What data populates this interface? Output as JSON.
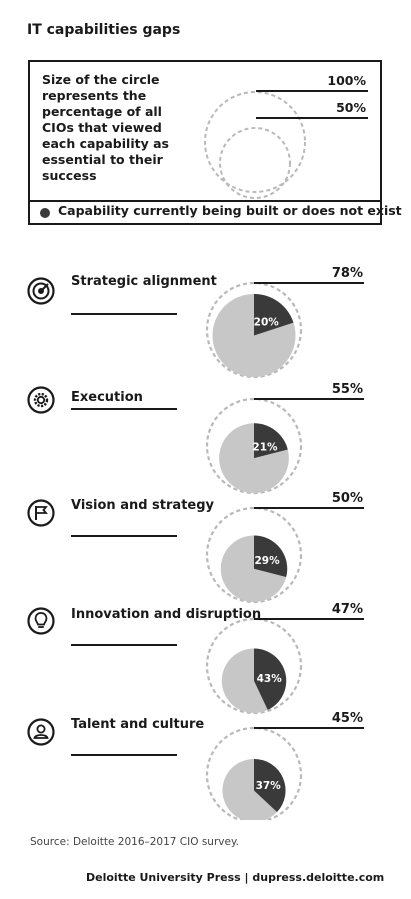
{
  "title": "IT capabilities gaps",
  "legend": {
    "description": "Size of the circle represents the percentage of all CIOs that viewed each capability as essential to their success",
    "scale_100": "100%",
    "scale_50": "50%",
    "dot_label": "Capability currently being built or does not exist",
    "colors": {
      "dot": "#3a3a3a",
      "pie_light": "#c7c7c7",
      "dashed": "#b9b9b9"
    }
  },
  "chart_data": {
    "type": "pie",
    "note_type": "bubble-pie (circle area = essential %, dark wedge = currently being built or does not exist)",
    "rows": [
      {
        "label": "Strategic alignment",
        "icon": "target-icon",
        "essential": 78,
        "essential_label": "78%",
        "building": 20,
        "building_label": "20%"
      },
      {
        "label": "Execution",
        "icon": "gear-icon",
        "essential": 55,
        "essential_label": "55%",
        "building": 21,
        "building_label": "21%"
      },
      {
        "label": "Vision and strategy",
        "icon": "flag-icon",
        "essential": 50,
        "essential_label": "50%",
        "building": 29,
        "building_label": "29%"
      },
      {
        "label": "Innovation and disruption",
        "icon": "lightbulb-icon",
        "essential": 47,
        "essential_label": "47%",
        "building": 43,
        "building_label": "43%"
      },
      {
        "label": "Talent and culture",
        "icon": "person-icon",
        "essential": 45,
        "essential_label": "45%",
        "building": 37,
        "building_label": "37%"
      }
    ]
  },
  "source": "Source: Deloitte 2016–2017 CIO survey.",
  "footer": "Deloitte University Press  |  dupress.deloitte.com"
}
